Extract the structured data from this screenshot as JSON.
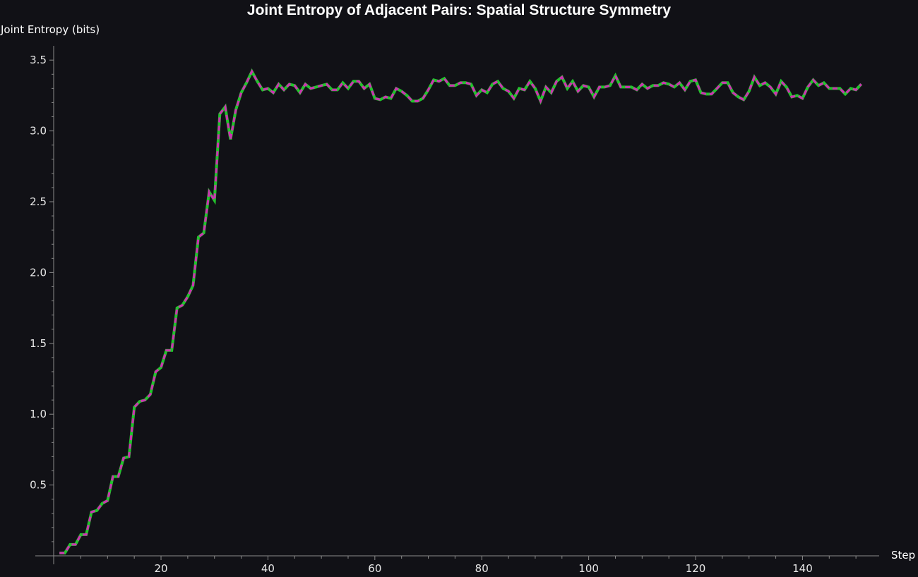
{
  "chart_data": {
    "type": "line",
    "title": "Joint Entropy of Adjacent Pairs: Spatial Structure Symmetry",
    "xlabel": "Step",
    "ylabel": "Joint Entropy (bits)",
    "xlim": [
      0,
      152
    ],
    "ylim": [
      0,
      3.6
    ],
    "xticks": [
      20,
      40,
      60,
      80,
      100,
      120,
      140
    ],
    "yticks": [
      0.5,
      1.0,
      1.5,
      2.0,
      2.5,
      3.0,
      3.5
    ],
    "ytick_labels": [
      "0.5",
      "1.0",
      "1.5",
      "2.0",
      "2.5",
      "3.0",
      "3.5"
    ],
    "grid": false,
    "x_start": 1,
    "series": [
      {
        "color": "#22c32c",
        "style": "solid",
        "values": []
      },
      {
        "color": "#d12fb4",
        "style": "dashed",
        "values": []
      }
    ],
    "values": [
      0.02,
      0.02,
      0.08,
      0.08,
      0.15,
      0.15,
      0.31,
      0.32,
      0.37,
      0.39,
      0.56,
      0.56,
      0.69,
      0.7,
      1.05,
      1.09,
      1.1,
      1.14,
      1.3,
      1.33,
      1.45,
      1.45,
      1.75,
      1.77,
      1.83,
      1.91,
      2.25,
      2.28,
      2.57,
      2.51,
      3.12,
      3.17,
      2.94,
      3.15,
      3.27,
      3.34,
      3.42,
      3.35,
      3.29,
      3.3,
      3.27,
      3.33,
      3.29,
      3.33,
      3.32,
      3.27,
      3.33,
      3.3,
      3.31,
      3.32,
      3.33,
      3.29,
      3.29,
      3.34,
      3.3,
      3.35,
      3.35,
      3.3,
      3.33,
      3.23,
      3.22,
      3.24,
      3.23,
      3.3,
      3.28,
      3.25,
      3.21,
      3.21,
      3.23,
      3.29,
      3.36,
      3.35,
      3.37,
      3.32,
      3.32,
      3.34,
      3.34,
      3.33,
      3.25,
      3.29,
      3.27,
      3.33,
      3.35,
      3.3,
      3.28,
      3.23,
      3.3,
      3.29,
      3.35,
      3.3,
      3.21,
      3.31,
      3.27,
      3.35,
      3.38,
      3.3,
      3.35,
      3.28,
      3.32,
      3.31,
      3.24,
      3.31,
      3.31,
      3.32,
      3.39,
      3.31,
      3.31,
      3.31,
      3.29,
      3.33,
      3.3,
      3.32,
      3.32,
      3.34,
      3.33,
      3.31,
      3.34,
      3.29,
      3.35,
      3.36,
      3.27,
      3.26,
      3.26,
      3.3,
      3.34,
      3.34,
      3.27,
      3.24,
      3.22,
      3.28,
      3.38,
      3.32,
      3.34,
      3.31,
      3.26,
      3.35,
      3.31,
      3.24,
      3.25,
      3.23,
      3.31,
      3.36,
      3.32,
      3.34,
      3.3,
      3.3,
      3.3,
      3.26,
      3.3,
      3.29,
      3.33
    ]
  }
}
